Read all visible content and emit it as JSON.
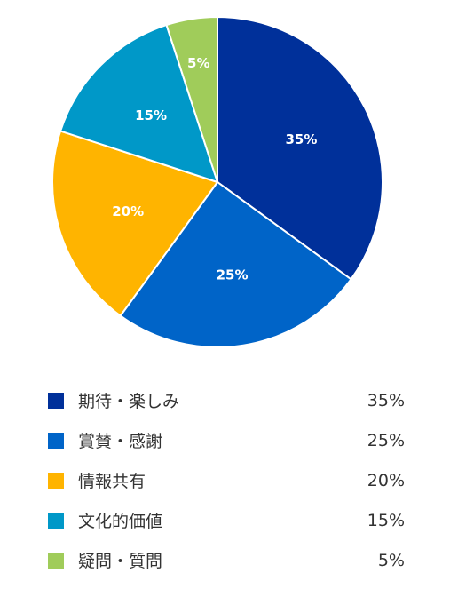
{
  "chart_data": {
    "type": "pie",
    "categories": [
      "期待・楽しみ",
      "賞賛・感謝",
      "情報共有",
      "文化的価値",
      "疑問・質問"
    ],
    "values": [
      35,
      25,
      20,
      15,
      5
    ],
    "slice_labels": [
      "35%",
      "25%",
      "20%",
      "15%",
      "5%"
    ],
    "colors": [
      "#00309a",
      "#0064c8",
      "#ffb400",
      "#0098c8",
      "#a0cc5a"
    ],
    "legend_placement": "bottom"
  },
  "legend": {
    "items": [
      {
        "label": "期待・楽しみ",
        "value": "35%",
        "color": "#00309a"
      },
      {
        "label": "賞賛・感謝",
        "value": "25%",
        "color": "#0064c8"
      },
      {
        "label": "情報共有",
        "value": "20%",
        "color": "#ffb400"
      },
      {
        "label": "文化的価値",
        "value": "15%",
        "color": "#0098c8"
      },
      {
        "label": "疑問・質問",
        "value": "5%",
        "color": "#a0cc5a"
      }
    ]
  }
}
